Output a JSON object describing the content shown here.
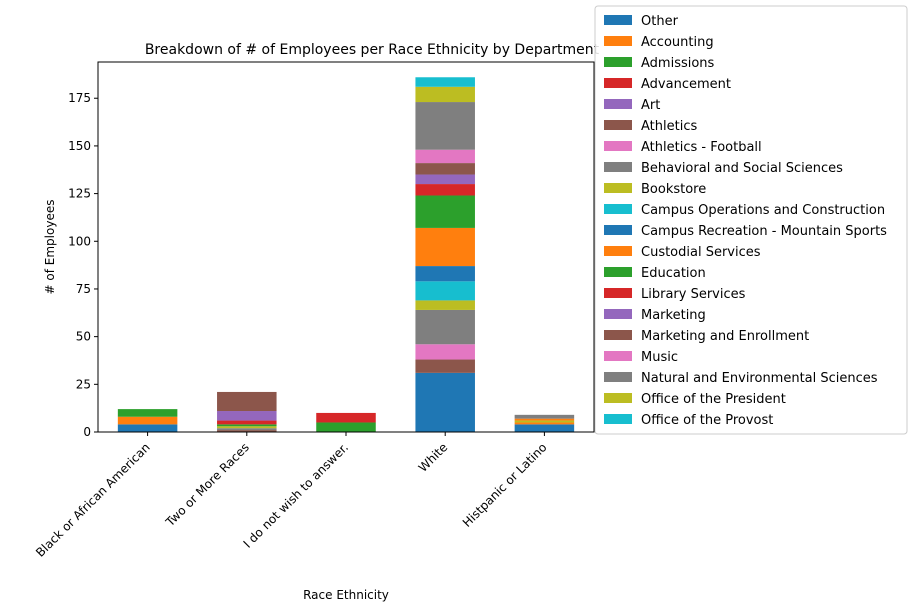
{
  "chart_data": {
    "type": "bar",
    "stacked": true,
    "title": "Breakdown of # of Employees per Race Ethnicity by Department",
    "xlabel": "Race Ethnicity",
    "ylabel": "# of Employees",
    "ylim": [
      0,
      194
    ],
    "yticks": [
      0,
      25,
      50,
      75,
      100,
      125,
      150,
      175
    ],
    "grid": false,
    "legend_position": "right",
    "categories": [
      "Black or African American",
      "Two or More Races",
      "I do not wish to answer.",
      "White",
      "Histpanic or Latino"
    ],
    "series": [
      {
        "name": "Other",
        "color": "#1f77b4",
        "values": [
          4,
          0,
          0,
          31,
          4
        ]
      },
      {
        "name": "Accounting",
        "color": "#ff7f0e",
        "values": [
          4,
          0,
          0,
          0,
          1
        ]
      },
      {
        "name": "Admissions",
        "color": "#2ca02c",
        "values": [
          4,
          0,
          5,
          0,
          0
        ]
      },
      {
        "name": "Advancement",
        "color": "#d62728",
        "values": [
          0,
          0,
          5,
          0,
          0
        ]
      },
      {
        "name": "Art",
        "color": "#9467bd",
        "values": [
          0,
          0,
          0,
          0,
          0
        ]
      },
      {
        "name": "Athletics",
        "color": "#8c564b",
        "values": [
          0,
          1,
          0,
          7,
          0
        ]
      },
      {
        "name": "Athletics - Football",
        "color": "#e377c2",
        "values": [
          0,
          0,
          0,
          8,
          0
        ]
      },
      {
        "name": "Behavioral and Social Sciences",
        "color": "#7f7f7f",
        "values": [
          0,
          1,
          0,
          18,
          0
        ]
      },
      {
        "name": "Bookstore",
        "color": "#bcbd22",
        "values": [
          0,
          1,
          0,
          5,
          1
        ]
      },
      {
        "name": "Campus Operations and Construction",
        "color": "#17becf",
        "values": [
          0,
          0,
          0,
          10,
          0
        ]
      },
      {
        "name": "Campus Recreation - Mountain Sports",
        "color": "#1f77b4",
        "values": [
          0,
          0,
          0,
          8,
          0
        ]
      },
      {
        "name": "Custodial Services",
        "color": "#ff7f0e",
        "values": [
          0,
          0,
          0,
          20,
          1
        ]
      },
      {
        "name": "Education",
        "color": "#2ca02c",
        "values": [
          0,
          1,
          0,
          17,
          0
        ]
      },
      {
        "name": "Library Services",
        "color": "#d62728",
        "values": [
          0,
          2,
          0,
          6,
          0
        ]
      },
      {
        "name": "Marketing",
        "color": "#9467bd",
        "values": [
          0,
          5,
          0,
          5,
          0
        ]
      },
      {
        "name": "Marketing and Enrollment",
        "color": "#8c564b",
        "values": [
          0,
          10,
          0,
          6,
          0
        ]
      },
      {
        "name": "Music",
        "color": "#e377c2",
        "values": [
          0,
          0,
          0,
          7,
          0
        ]
      },
      {
        "name": "Natural and Environmental Sciences",
        "color": "#7f7f7f",
        "values": [
          0,
          0,
          0,
          25,
          2
        ]
      },
      {
        "name": "Office of the President",
        "color": "#bcbd22",
        "values": [
          0,
          0,
          0,
          8,
          0
        ]
      },
      {
        "name": "Office of the Provost",
        "color": "#17becf",
        "values": [
          0,
          0,
          0,
          5,
          0
        ]
      }
    ]
  }
}
